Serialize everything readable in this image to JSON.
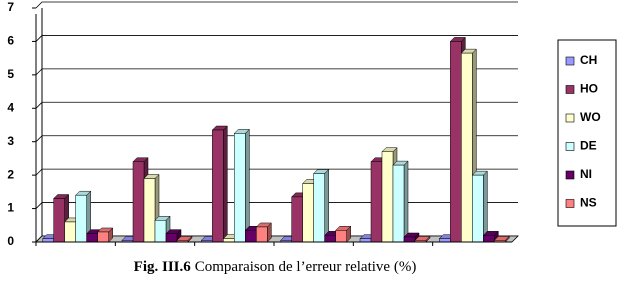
{
  "chart_data": {
    "type": "bar",
    "figure_label": "Fig. III.6",
    "title": "Comparaison de l’erreur relative (%)",
    "categories": [
      null,
      null,
      null,
      null,
      null,
      null
    ],
    "series": [
      {
        "name": "CH",
        "color": "#9999ff",
        "values": [
          0.1,
          0.05,
          0.05,
          0.05,
          0.1,
          0.1
        ]
      },
      {
        "name": "HO",
        "color": "#993366",
        "values": [
          1.3,
          2.4,
          3.35,
          1.35,
          2.4,
          6.0
        ]
      },
      {
        "name": "WO",
        "color": "#ffffcc",
        "values": [
          0.6,
          1.9,
          0.1,
          1.75,
          2.7,
          5.65
        ]
      },
      {
        "name": "DE",
        "color": "#ccffff",
        "values": [
          1.4,
          0.65,
          3.25,
          2.05,
          2.3,
          2.0
        ]
      },
      {
        "name": "NI",
        "color": "#660066",
        "values": [
          0.25,
          0.25,
          0.35,
          0.2,
          0.15,
          0.2
        ]
      },
      {
        "name": "NS",
        "color": "#ff8080",
        "values": [
          0.3,
          0.05,
          0.45,
          0.35,
          0.05,
          0.05
        ]
      }
    ],
    "ylim": [
      0,
      7
    ],
    "yticks": [
      0,
      1,
      2,
      3,
      4,
      5,
      6,
      7
    ],
    "grid": true,
    "legend": "right"
  }
}
